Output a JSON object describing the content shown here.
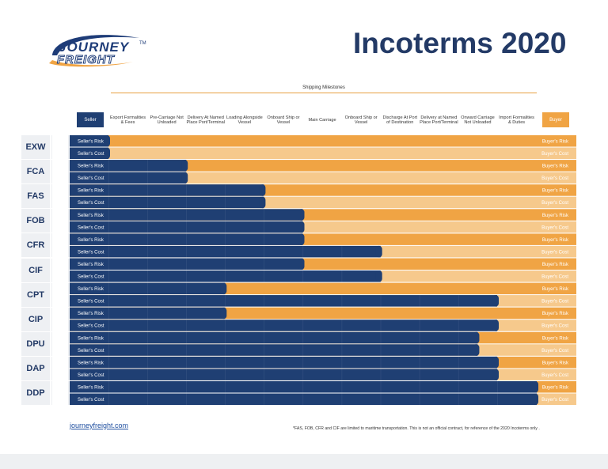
{
  "brand": {
    "logo_word1": "JOURNEY",
    "logo_word2": "FREIGHT",
    "logo_tm": "TM",
    "website": "journeyfreight.com"
  },
  "title": "Incoterms 2020",
  "footnote": "*FAS, FOB, CFR and CIF are limited to maritime transportation. This is not an official contract, for reference of the 2020 Incoterms only .",
  "colors": {
    "seller_dark": "#1f3f73",
    "buyer_risk": "#f0a444",
    "buyer_cost": "#f6c98c",
    "title": "#233a66"
  },
  "chart_data": {
    "type": "table",
    "title": "Incoterms 2020",
    "x_group_label": "Shipping Milestones",
    "seller_label": "Seller",
    "buyer_label": "Buyer",
    "milestones": [
      "Export Formalities & Fees",
      "Pre-Carriage Not Unloaded",
      "Delivery At Named Place Port/Terminal",
      "Loading Alongside Vessel",
      "Onboard Ship or Vessel",
      "Main Carriage",
      "Onboard Ship or Vessel",
      "Discharge At Port of Destination",
      "Delivery at Named Place Port/Terminal",
      "Onward Carriage Not Unloaded",
      "Import Formalities & Duties"
    ],
    "row_labels": {
      "seller_risk": "Seller's Risk",
      "seller_cost": "Seller's Cost",
      "buyer_risk": "Buyer's Risk",
      "buyer_cost": "Buyer's Cost"
    },
    "transport_icons": [
      "all-modes-icon",
      "sea-only-icon"
    ],
    "terms": [
      {
        "code": "EXW",
        "mode": "all-modes-icon",
        "risk_until": 0,
        "cost_until": 0
      },
      {
        "code": "FCA",
        "mode": "all-modes-icon",
        "risk_until": 2,
        "cost_until": 2
      },
      {
        "code": "FAS",
        "mode": "sea-only-icon",
        "risk_until": 4,
        "cost_until": 4
      },
      {
        "code": "FOB",
        "mode": "sea-only-icon",
        "risk_until": 5,
        "cost_until": 5
      },
      {
        "code": "CFR",
        "mode": "sea-only-icon",
        "risk_until": 5,
        "cost_until": 7
      },
      {
        "code": "CIF",
        "mode": "sea-only-icon",
        "risk_until": 5,
        "cost_until": 7
      },
      {
        "code": "CPT",
        "mode": "all-modes-icon",
        "risk_until": 3,
        "cost_until": 10
      },
      {
        "code": "CIP",
        "mode": "all-modes-icon",
        "risk_until": 3,
        "cost_until": 10
      },
      {
        "code": "DPU",
        "mode": "all-modes-icon",
        "risk_until": 9.5,
        "cost_until": 9.5
      },
      {
        "code": "DAP",
        "mode": "all-modes-icon",
        "risk_until": 10,
        "cost_until": 10
      },
      {
        "code": "DDP",
        "mode": "all-modes-icon",
        "risk_until": 11,
        "cost_until": 11
      }
    ]
  }
}
